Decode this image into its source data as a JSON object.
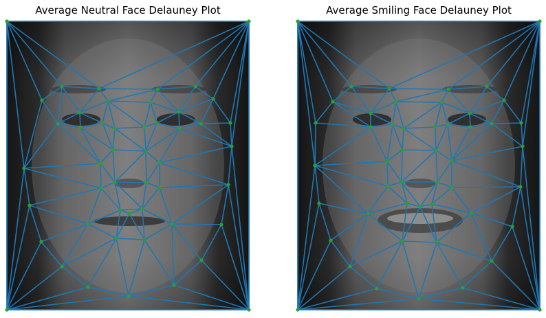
{
  "panels": [
    {
      "title": "Average Neutral Face Delauney Plot",
      "image": "average-neutral-face",
      "mesh_color": "#1f77b4",
      "point_color": "#2ca02c"
    },
    {
      "title": "Average Smiling Face Delauney Plot",
      "image": "average-smiling-face",
      "mesh_color": "#1f77b4",
      "point_color": "#2ca02c"
    }
  ]
}
